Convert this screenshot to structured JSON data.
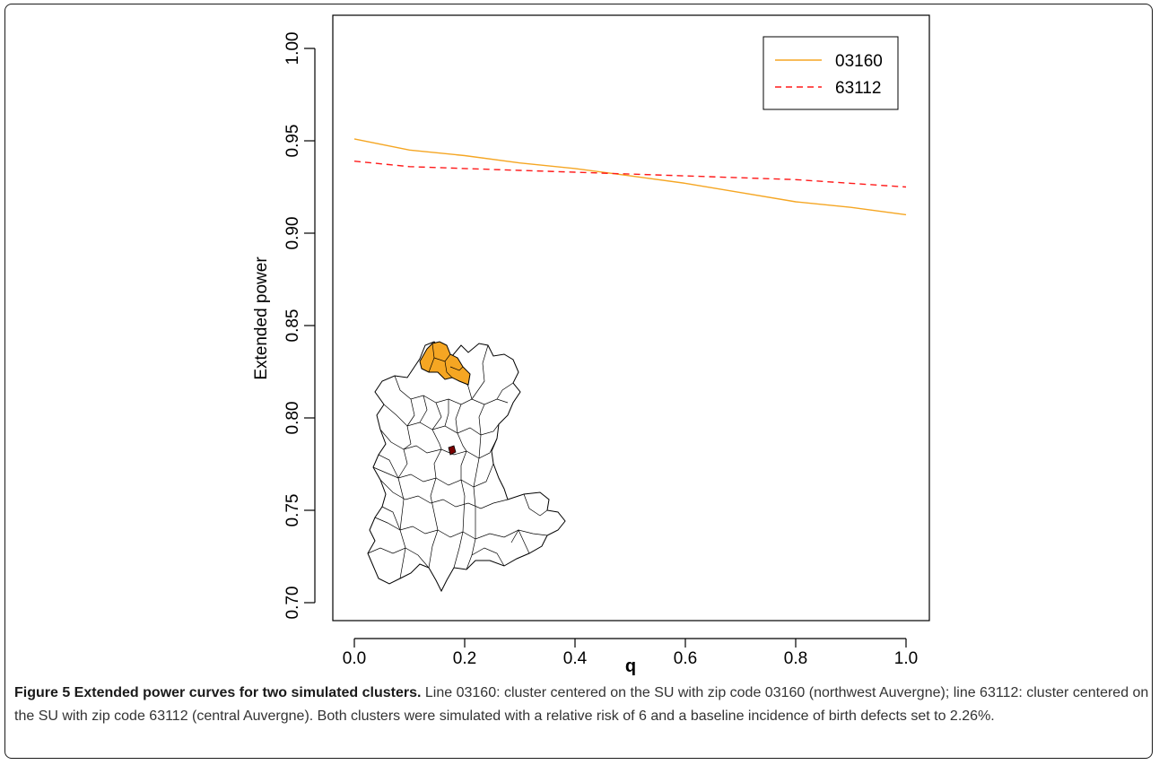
{
  "chart_data": {
    "type": "line",
    "xlabel": "q",
    "ylabel": "Extended power",
    "xlim": [
      0.0,
      1.0
    ],
    "ylim": [
      0.7,
      1.0
    ],
    "x_ticks": [
      "0.0",
      "0.2",
      "0.4",
      "0.6",
      "0.8",
      "1.0"
    ],
    "y_ticks": [
      "0.70",
      "0.75",
      "0.80",
      "0.85",
      "0.90",
      "0.95",
      "1.00"
    ],
    "legend_position": "top-right",
    "series": [
      {
        "name": "03160",
        "color": "#f5a623",
        "style": "solid",
        "x": [
          0.0,
          0.1,
          0.2,
          0.3,
          0.4,
          0.5,
          0.6,
          0.7,
          0.8,
          0.9,
          1.0
        ],
        "y": [
          0.951,
          0.945,
          0.942,
          0.938,
          0.935,
          0.931,
          0.927,
          0.922,
          0.917,
          0.914,
          0.91
        ]
      },
      {
        "name": "63112",
        "color": "#ff1a1a",
        "style": "dashed",
        "x": [
          0.0,
          0.1,
          0.2,
          0.3,
          0.4,
          0.5,
          0.6,
          0.7,
          0.8,
          0.9,
          1.0
        ],
        "y": [
          0.939,
          0.936,
          0.935,
          0.934,
          0.933,
          0.932,
          0.931,
          0.93,
          0.929,
          0.927,
          0.925
        ]
      }
    ]
  },
  "inset_map": {
    "name": "Auvergne map",
    "highlight_colors": {
      "03160": "#f5a623",
      "63112": "#7a0000"
    }
  },
  "caption": {
    "bold": "Figure 5 Extended power curves for two simulated clusters.",
    "text": " Line 03160: cluster centered on the SU with zip code 03160 (northwest Auvergne); line 63112: cluster centered on the SU with zip code 63112 (central Auvergne). Both clusters were simulated with a relative risk of 6 and a baseline incidence of birth defects set to 2.26%."
  }
}
